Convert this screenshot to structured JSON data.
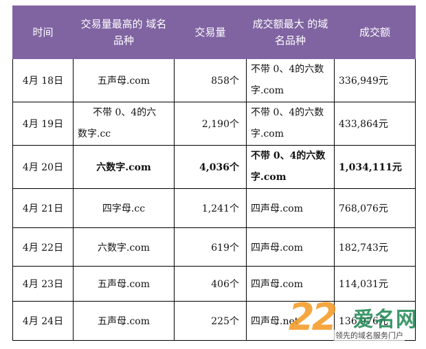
{
  "headers": [
    "时间",
    "交易量最高的域名品种",
    "交易量",
    "成交额最大的域名品种",
    "成交额"
  ],
  "header_lines": {
    "col1": [
      "交易量最高的",
      "域名品种"
    ],
    "col3": [
      "成交额最大",
      "的域名品种"
    ]
  },
  "rows": [
    {
      "date": "4月 18日",
      "top_volume_type": "五声母.com",
      "volume": "858个",
      "top_value_type": "不带 0、4的六数字.com",
      "value": "336,949元"
    },
    {
      "date": "4月 19日",
      "top_volume_type": "不带 0、4的六数字.cc",
      "volume": "2,190个",
      "top_value_type": "不带 0、4的六数字.com",
      "value": "433,864元"
    },
    {
      "date": "4月 20日",
      "top_volume_type": "六数字.com",
      "volume": "4,036个",
      "top_value_type": "不带 0、4的六数字.com",
      "value": "1,034,111元"
    },
    {
      "date": "4月 21日",
      "top_volume_type": "四字母.cc",
      "volume": "1,241个",
      "top_value_type": "四声母.com",
      "value": "768,076元"
    },
    {
      "date": "4月 22日",
      "top_volume_type": "六数字.com",
      "volume": "619个",
      "top_value_type": "四声母.com",
      "value": "182,743元"
    },
    {
      "date": "4月 23日",
      "top_volume_type": "五声母.com",
      "volume": "406个",
      "top_value_type": "四声母.com",
      "value": "114,031元"
    },
    {
      "date": "4月 24日",
      "top_volume_type": "五声母.com",
      "volume": "225个",
      "top_value_type": "四声母.net",
      "value": "136,976元"
    }
  ],
  "wrapped_cells": {
    "r0_c3": [
      "不带 0、4的六数",
      "字.com"
    ],
    "r1_c1": [
      "不带 0、4的六",
      "数字.cc"
    ],
    "r1_c3": [
      "不带 0、4的六数",
      "字.com"
    ],
    "r2_c3": [
      "不带 0、4的六数",
      "字.com"
    ]
  },
  "watermark": {
    "number": "22",
    "name": "爱名网",
    "tagline": "领先的域名服务门户"
  }
}
